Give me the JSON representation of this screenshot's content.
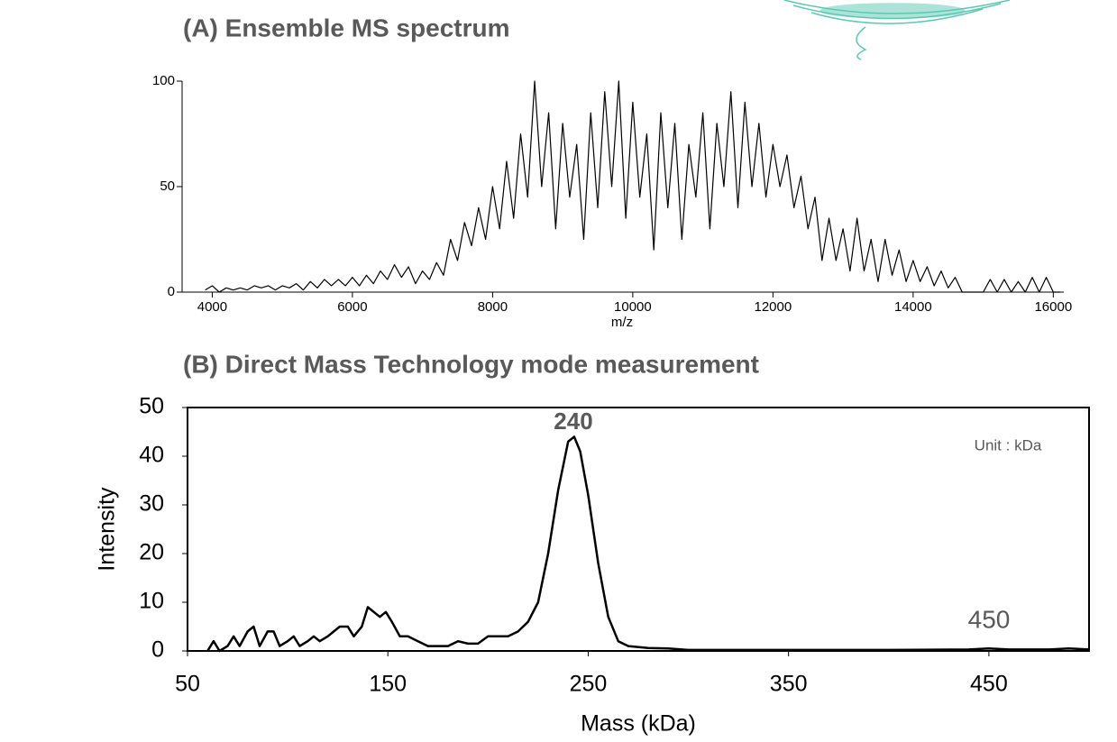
{
  "chart_data": [
    {
      "type": "line",
      "title": "(A) Ensemble MS spectrum",
      "x_label": "m/z",
      "x": [
        3900,
        4000,
        4100,
        4200,
        4300,
        4400,
        4500,
        4600,
        4700,
        4800,
        4900,
        5000,
        5100,
        5200,
        5300,
        5400,
        5500,
        5600,
        5700,
        5800,
        5900,
        6000,
        6100,
        6200,
        6300,
        6400,
        6500,
        6600,
        6700,
        6800,
        6900,
        7000,
        7100,
        7200,
        7300,
        7400,
        7500,
        7600,
        7700,
        7800,
        7900,
        8000,
        8100,
        8200,
        8300,
        8400,
        8500,
        8600,
        8700,
        8800,
        8900,
        9000,
        9100,
        9200,
        9300,
        9400,
        9500,
        9600,
        9700,
        9800,
        9900,
        10000,
        10100,
        10200,
        10300,
        10400,
        10500,
        10600,
        10700,
        10800,
        10900,
        11000,
        11100,
        11200,
        11300,
        11400,
        11500,
        11600,
        11700,
        11800,
        11900,
        12000,
        12100,
        12200,
        12300,
        12400,
        12500,
        12600,
        12700,
        12800,
        12900,
        13000,
        13100,
        13200,
        13300,
        13400,
        13500,
        13600,
        13700,
        13800,
        13900,
        14000,
        14100,
        14200,
        14300,
        14400,
        14500,
        14600,
        14700,
        14800,
        14900,
        15000,
        15100,
        15200,
        15300,
        15400,
        15500,
        15600,
        15700,
        15800,
        15900,
        16000,
        16100
      ],
      "values": [
        1,
        3,
        0,
        2,
        1,
        2,
        1,
        3,
        2,
        3,
        1,
        3,
        2,
        4,
        1,
        5,
        2,
        6,
        3,
        6,
        3,
        7,
        3,
        8,
        4,
        10,
        6,
        13,
        7,
        12,
        4,
        10,
        6,
        14,
        8,
        25,
        15,
        33,
        22,
        40,
        25,
        50,
        30,
        62,
        35,
        75,
        45,
        100,
        50,
        85,
        30,
        80,
        45,
        70,
        25,
        85,
        40,
        95,
        50,
        100,
        35,
        90,
        45,
        75,
        20,
        85,
        40,
        80,
        25,
        70,
        45,
        85,
        30,
        80,
        50,
        95,
        40,
        90,
        50,
        80,
        45,
        70,
        50,
        65,
        40,
        55,
        30,
        45,
        15,
        35,
        15,
        30,
        10,
        35,
        10,
        25,
        5,
        25,
        8,
        20,
        5,
        15,
        5,
        12,
        3,
        10,
        2,
        7,
        0,
        0,
        0,
        0,
        6,
        0,
        6,
        0,
        5,
        0,
        7,
        0,
        7,
        0,
        0
      ],
      "color": "#000000",
      "xlim": [
        3570,
        16150
      ],
      "xticks": [
        4000,
        6000,
        8000,
        10000,
        12000,
        14000,
        16000
      ],
      "ylim": [
        0,
        100
      ],
      "yticks": [
        0,
        50,
        100
      ]
    },
    {
      "type": "line",
      "title": "(B) Direct Mass Technology mode measurement",
      "x_label": "Mass (kDa)",
      "y_label": "Intensity",
      "annotations": [
        "240",
        "450",
        "Unit : kDa"
      ],
      "x": [
        60,
        63,
        66,
        70,
        73,
        76,
        80,
        83,
        86,
        90,
        93,
        96,
        100,
        103,
        106,
        110,
        113,
        116,
        120,
        123,
        126,
        130,
        133,
        137,
        140,
        143,
        146,
        149,
        152,
        156,
        160,
        165,
        170,
        175,
        180,
        185,
        190,
        195,
        200,
        205,
        210,
        215,
        220,
        225,
        230,
        235,
        240,
        243,
        246,
        250,
        255,
        260,
        265,
        270,
        280,
        290,
        300,
        350,
        400,
        440,
        450,
        460,
        480,
        490,
        500
      ],
      "values": [
        0,
        2,
        0,
        1,
        3,
        1,
        4,
        5,
        1,
        4,
        4,
        1,
        2,
        3,
        1,
        2,
        3,
        2,
        3,
        4,
        5,
        5,
        3,
        5,
        9,
        8,
        7,
        8,
        6,
        3,
        3,
        2,
        1,
        1,
        1,
        2,
        1.5,
        1.5,
        3,
        3,
        3,
        4,
        6,
        10,
        20,
        33,
        43,
        44,
        41,
        32,
        18,
        7,
        2,
        1,
        0.6,
        0.5,
        0.2,
        0.2,
        0.2,
        0.3,
        0.5,
        0.3,
        0.3,
        0.5,
        0.3
      ],
      "color": "#000000",
      "xlim": [
        50,
        500
      ],
      "xticks": [
        50,
        150,
        250,
        350,
        450
      ],
      "ylim": [
        0,
        50
      ],
      "yticks": [
        0,
        10,
        20,
        30,
        40,
        50
      ]
    }
  ]
}
